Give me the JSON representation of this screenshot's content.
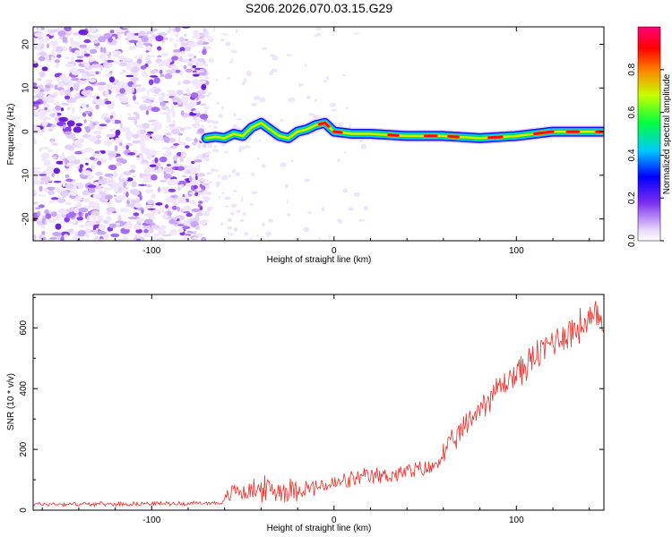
{
  "figure_title": "S206.2026.070.03.15.G29",
  "chart_data": [
    {
      "type": "heatmap",
      "title": "S206.2026.070.03.15.G29",
      "xlabel": "Height of straight line (km)",
      "ylabel": "Frequency (Hz)",
      "xlim": [
        -165,
        148
      ],
      "ylim": [
        -25,
        24
      ],
      "x_ticks": [
        -100,
        0,
        100
      ],
      "x_tick_labels": [
        "-100",
        "0",
        "100"
      ],
      "y_ticks": [
        -20,
        -10,
        0,
        10,
        20
      ],
      "y_tick_labels": [
        "-20",
        "-10",
        "0",
        "10",
        "20"
      ],
      "colorbar": {
        "label": "Normalized spectral amplitude",
        "range": [
          0,
          1
        ],
        "ticks": [
          0.0,
          0.2,
          0.4,
          0.6,
          0.8
        ],
        "tick_labels": [
          "0.0",
          "0.2",
          "0.4",
          "0.6",
          "0.8"
        ]
      },
      "noise_region_x": [
        -165,
        -70
      ],
      "signal_ridge": {
        "x": [
          -70,
          -65,
          -60,
          -55,
          -50,
          -45,
          -40,
          -35,
          -30,
          -25,
          -20,
          -15,
          -10,
          -5,
          0,
          10,
          20,
          40,
          60,
          80,
          100,
          120,
          140,
          147
        ],
        "frequency": [
          -1.5,
          -1.2,
          -1.5,
          -0.5,
          -1.0,
          1.0,
          2.0,
          0.5,
          -1.0,
          -1.5,
          0.0,
          0.5,
          1.5,
          2.0,
          0.0,
          -0.5,
          -0.5,
          -1.0,
          -1.0,
          -1.5,
          -1.0,
          0.0,
          0.0,
          0.0
        ]
      }
    },
    {
      "type": "line",
      "title": "",
      "xlabel": "Height of straight line (km)",
      "ylabel": "SNR (10 * v/v)",
      "xlim": [
        -165,
        148
      ],
      "ylim": [
        0,
        710
      ],
      "x_ticks": [
        -100,
        0,
        100
      ],
      "x_tick_labels": [
        "-100",
        "0",
        "100"
      ],
      "y_ticks": [
        0,
        200,
        400,
        600
      ],
      "y_tick_labels": [
        "0",
        "200",
        "400",
        "600"
      ],
      "series": [
        {
          "name": "SNR",
          "color": "#e8302a",
          "x": [
            -165,
            -140,
            -120,
            -100,
            -80,
            -60,
            -55,
            -50,
            -40,
            -30,
            -20,
            -10,
            0,
            10,
            20,
            30,
            40,
            50,
            55,
            56,
            60,
            70,
            80,
            90,
            100,
            110,
            120,
            130,
            140,
            148
          ],
          "y": [
            20,
            20,
            20,
            22,
            22,
            25,
            70,
            60,
            70,
            65,
            70,
            75,
            85,
            100,
            110,
            115,
            125,
            135,
            140,
            160,
            185,
            260,
            340,
            400,
            450,
            500,
            560,
            590,
            620,
            630
          ]
        }
      ]
    }
  ]
}
